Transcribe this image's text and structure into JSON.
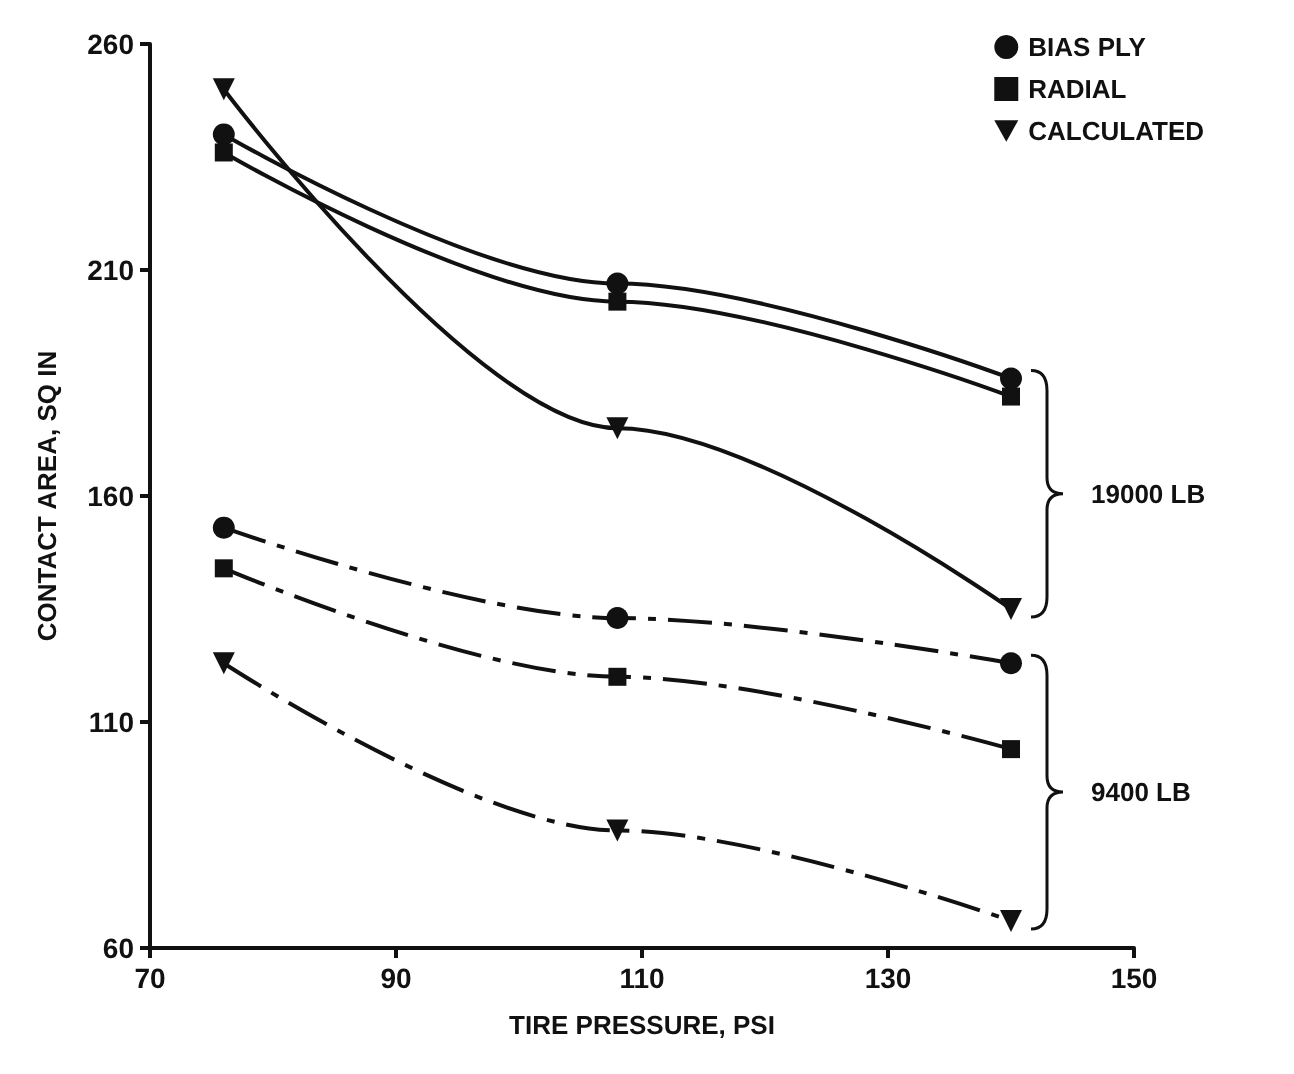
{
  "chart_data": {
    "type": "line",
    "xlabel": "TIRE PRESSURE, PSI",
    "ylabel": "CONTACT AREA, SQ IN",
    "x": [
      76,
      108,
      140
    ],
    "series": [
      {
        "name": "BIAS PLY",
        "color": "#111111",
        "values": [
          240,
          207,
          186
        ],
        "marker": "circle",
        "line_style": "solid"
      },
      {
        "name": "RADIAL",
        "color": "#111111",
        "values": [
          236,
          203,
          182
        ],
        "marker": "square",
        "line_style": "solid"
      },
      {
        "name": "CALCULATED",
        "color": "#111111",
        "values": [
          250,
          175,
          135
        ],
        "marker": "triangle",
        "line_style": "solid"
      },
      {
        "color": "#111111",
        "values": [
          153,
          133,
          123
        ],
        "marker": "circle",
        "line_style": "dashed"
      },
      {
        "color": "#111111",
        "values": [
          144,
          120,
          104
        ],
        "marker": "square",
        "line_style": "dashed"
      },
      {
        "color": "#111111",
        "values": [
          123,
          86,
          66
        ],
        "marker": "triangle",
        "line_style": "dashed"
      }
    ],
    "xlim": [
      70,
      150
    ],
    "xticks": [
      70,
      90,
      110,
      130,
      150
    ],
    "ylim": [
      60,
      260
    ],
    "yticks": [
      60,
      110,
      160,
      210,
      260
    ],
    "annotations": [
      "19000 LB",
      "9400 LB"
    ],
    "grid": false,
    "legend": "top right"
  }
}
